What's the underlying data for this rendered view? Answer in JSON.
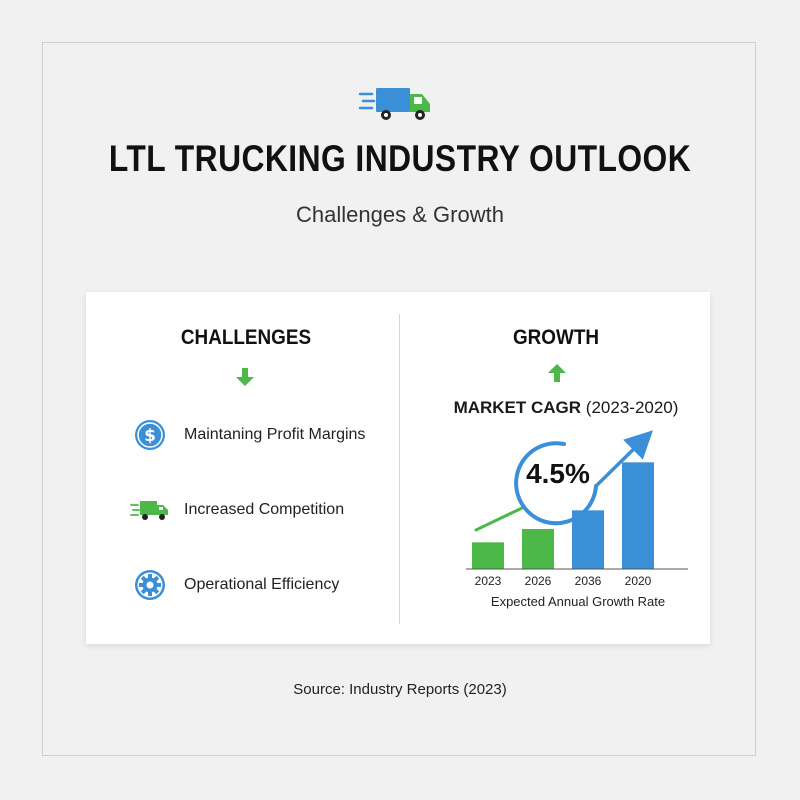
{
  "header": {
    "icon": "delivery-truck-icon",
    "title": "LTL TRUCKING INDUSTRY OUTLOOK",
    "subtitle": "Challenges & Growth"
  },
  "challenges": {
    "heading": "CHALLENGES",
    "arrow_icon": "arrow-down-icon",
    "items": [
      {
        "icon": "dollar-icon",
        "label": "Maintaning Profit Margins"
      },
      {
        "icon": "truck-icon",
        "label": "Increased Competition"
      },
      {
        "icon": "gear-icon",
        "label": "Operational Efficiency"
      }
    ]
  },
  "growth": {
    "heading": "GROWTH",
    "arrow_icon": "arrow-up-icon",
    "market_label": "MARKET CAGR",
    "market_range": "(2023-2020)"
  },
  "chart_data": {
    "type": "bar",
    "categories": [
      "2023",
      "2026",
      "2036",
      "2020"
    ],
    "values": [
      1.0,
      1.5,
      2.2,
      4.0
    ],
    "ylim": [
      0,
      4.5
    ],
    "colors": [
      "#4cb848",
      "#4cb848",
      "#3a8fd6",
      "#3a8fd6"
    ],
    "highlight": "4.5%",
    "xlabel": "Expected Annual Growth Rate"
  },
  "colors": {
    "green": "#4cb848",
    "blue": "#3a8fd6"
  },
  "footer": {
    "source": "Source: Industry Reports (2023)"
  }
}
